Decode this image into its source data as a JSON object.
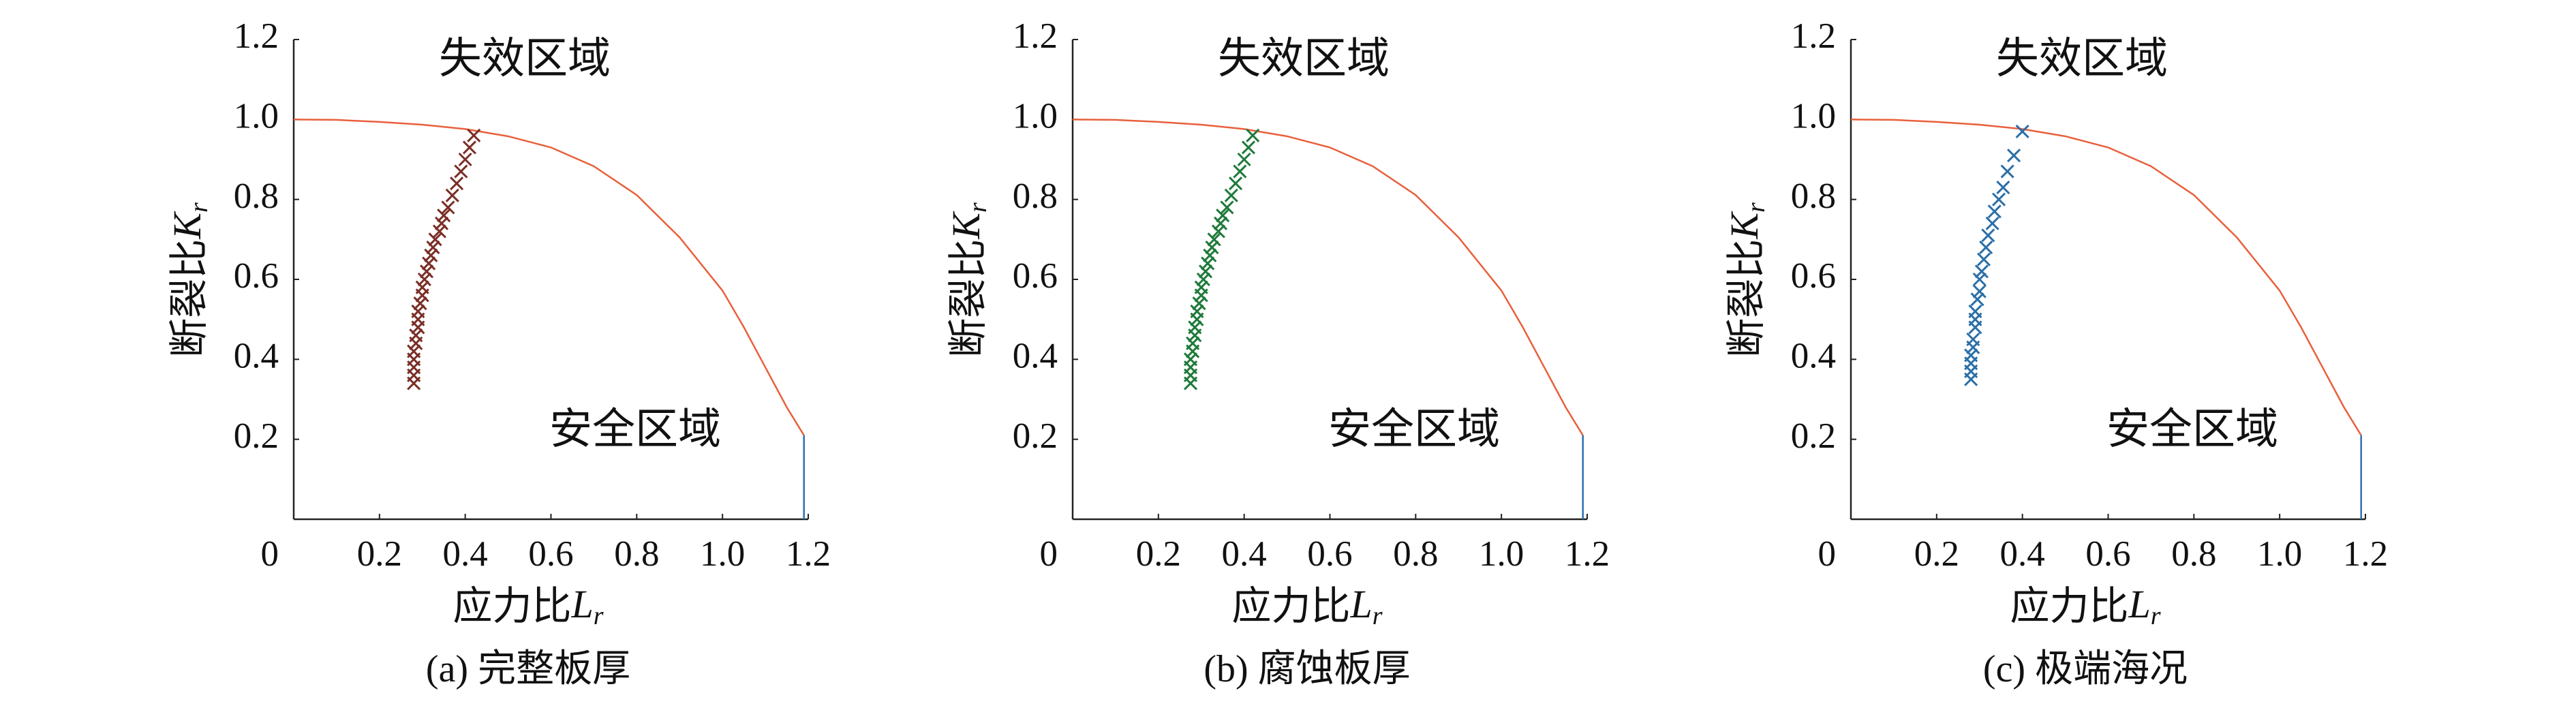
{
  "chart_data": [
    {
      "type": "scatter",
      "caption": "(a) 完整板厚",
      "x_label": [
        "应力比",
        "L",
        "r"
      ],
      "y_label": [
        "断裂比",
        "K",
        "r"
      ],
      "annotations": [
        "失效区域",
        "安全区域"
      ],
      "xlim": [
        0,
        1.2
      ],
      "ylim": [
        0,
        1.2
      ],
      "xticks": [
        0,
        0.2,
        0.4,
        0.6,
        0.8,
        {
          "value": 1,
          "label": "1.0"
        },
        1.2
      ],
      "yticks": [
        0.2,
        0.4,
        0.6,
        0.8,
        {
          "value": 1,
          "label": "1.0"
        },
        1.2
      ],
      "series": [
        {
          "style": "line",
          "color": "#e8603c",
          "x": [
            0,
            0.1,
            0.2,
            0.3,
            0.4,
            0.5,
            0.6,
            0.7,
            0.8,
            0.9,
            1.0,
            1.05,
            1.1,
            1.15,
            1.19
          ],
          "values": [
            1.0,
            0.999,
            0.994,
            0.987,
            0.976,
            0.958,
            0.93,
            0.883,
            0.811,
            0.705,
            0.572,
            0.48,
            0.38,
            0.28,
            0.21
          ]
        },
        {
          "style": "line",
          "color": "#2e6fb0",
          "x": [
            1.19,
            1.19
          ],
          "values": [
            0.21,
            0
          ]
        },
        {
          "style": "cross",
          "color": "#7a2e26",
          "x": [
            0.28,
            0.28,
            0.28,
            0.28,
            0.28,
            0.285,
            0.285,
            0.29,
            0.29,
            0.29,
            0.295,
            0.3,
            0.3,
            0.305,
            0.31,
            0.315,
            0.32,
            0.325,
            0.33,
            0.34,
            0.345,
            0.35,
            0.36,
            0.37,
            0.38,
            0.39,
            0.4,
            0.41,
            0.42
          ],
          "values": [
            0.34,
            0.36,
            0.38,
            0.4,
            0.42,
            0.44,
            0.46,
            0.48,
            0.5,
            0.52,
            0.54,
            0.56,
            0.58,
            0.6,
            0.62,
            0.64,
            0.66,
            0.68,
            0.7,
            0.72,
            0.74,
            0.76,
            0.78,
            0.81,
            0.84,
            0.87,
            0.9,
            0.93,
            0.96
          ]
        }
      ]
    },
    {
      "type": "scatter",
      "caption": "(b) 腐蚀板厚",
      "x_label": [
        "应力比",
        "L",
        "r"
      ],
      "y_label": [
        "断裂比",
        "K",
        "r"
      ],
      "annotations": [
        "失效区域",
        "安全区域"
      ],
      "xlim": [
        0,
        1.2
      ],
      "ylim": [
        0,
        1.2
      ],
      "xticks": [
        0,
        0.2,
        0.4,
        0.6,
        0.8,
        {
          "value": 1,
          "label": "1.0"
        },
        1.2
      ],
      "yticks": [
        0.2,
        0.4,
        0.6,
        0.8,
        {
          "value": 1,
          "label": "1.0"
        },
        1.2
      ],
      "series": [
        {
          "style": "line",
          "color": "#e8603c",
          "x": [
            0,
            0.1,
            0.2,
            0.3,
            0.4,
            0.5,
            0.6,
            0.7,
            0.8,
            0.9,
            1.0,
            1.05,
            1.1,
            1.15,
            1.19
          ],
          "values": [
            1.0,
            0.999,
            0.994,
            0.987,
            0.976,
            0.958,
            0.93,
            0.883,
            0.811,
            0.705,
            0.572,
            0.48,
            0.38,
            0.28,
            0.21
          ]
        },
        {
          "style": "line",
          "color": "#2e6fb0",
          "x": [
            1.19,
            1.19
          ],
          "values": [
            0.21,
            0
          ]
        },
        {
          "style": "cross",
          "color": "#1e7a3a",
          "x": [
            0.275,
            0.275,
            0.275,
            0.275,
            0.28,
            0.28,
            0.285,
            0.285,
            0.29,
            0.29,
            0.295,
            0.3,
            0.3,
            0.305,
            0.31,
            0.315,
            0.32,
            0.325,
            0.33,
            0.34,
            0.345,
            0.35,
            0.36,
            0.37,
            0.38,
            0.39,
            0.4,
            0.41,
            0.42
          ],
          "values": [
            0.34,
            0.36,
            0.38,
            0.4,
            0.42,
            0.44,
            0.46,
            0.48,
            0.5,
            0.52,
            0.54,
            0.56,
            0.58,
            0.6,
            0.62,
            0.64,
            0.66,
            0.68,
            0.7,
            0.72,
            0.74,
            0.76,
            0.78,
            0.81,
            0.84,
            0.87,
            0.9,
            0.93,
            0.96
          ]
        }
      ]
    },
    {
      "type": "scatter",
      "caption": "(c) 极端海况",
      "x_label": [
        "应力比",
        "L",
        "r"
      ],
      "y_label": [
        "断裂比",
        "K",
        "r"
      ],
      "annotations": [
        "失效区域",
        "安全区域"
      ],
      "xlim": [
        0,
        1.2
      ],
      "ylim": [
        0,
        1.2
      ],
      "xticks": [
        0,
        0.2,
        0.4,
        0.6,
        0.8,
        {
          "value": 1,
          "label": "1.0"
        },
        1.2
      ],
      "yticks": [
        0.2,
        0.4,
        0.6,
        0.8,
        {
          "value": 1,
          "label": "1.0"
        },
        1.2
      ],
      "series": [
        {
          "style": "line",
          "color": "#e8603c",
          "x": [
            0,
            0.1,
            0.2,
            0.3,
            0.4,
            0.5,
            0.6,
            0.7,
            0.8,
            0.9,
            1.0,
            1.05,
            1.1,
            1.15,
            1.19
          ],
          "values": [
            1.0,
            0.999,
            0.994,
            0.987,
            0.976,
            0.958,
            0.93,
            0.883,
            0.811,
            0.705,
            0.572,
            0.48,
            0.38,
            0.28,
            0.21
          ]
        },
        {
          "style": "line",
          "color": "#2e6fb0",
          "x": [
            1.19,
            1.19
          ],
          "values": [
            0.21,
            0
          ]
        },
        {
          "style": "cross",
          "color": "#2b6fa8",
          "x": [
            0.28,
            0.28,
            0.28,
            0.28,
            0.285,
            0.285,
            0.29,
            0.29,
            0.29,
            0.295,
            0.3,
            0.3,
            0.305,
            0.31,
            0.315,
            0.32,
            0.33,
            0.335,
            0.345,
            0.355,
            0.365,
            0.38,
            0.4
          ],
          "values": [
            0.35,
            0.37,
            0.39,
            0.41,
            0.43,
            0.45,
            0.48,
            0.5,
            0.52,
            0.55,
            0.57,
            0.6,
            0.62,
            0.65,
            0.68,
            0.71,
            0.74,
            0.77,
            0.8,
            0.83,
            0.87,
            0.91,
            0.97
          ]
        }
      ]
    }
  ]
}
